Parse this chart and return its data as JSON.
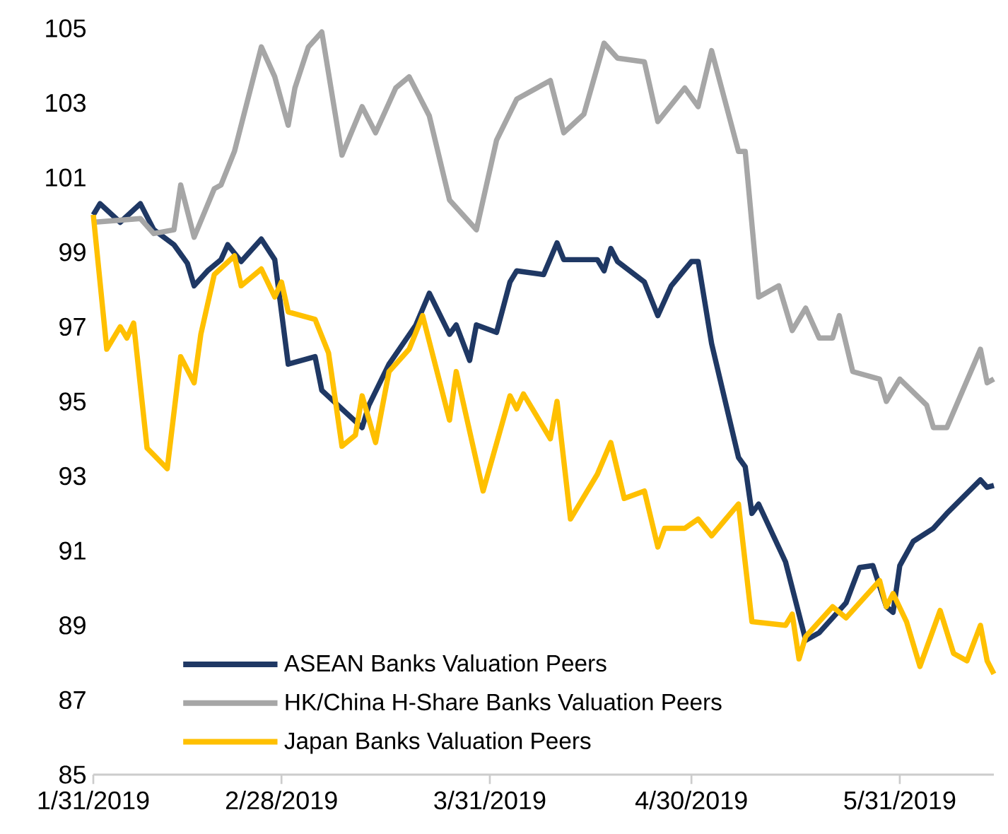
{
  "chart_data": {
    "type": "line",
    "x": [
      "2019-01-31",
      "2019-02-01",
      "2019-02-04",
      "2019-02-07",
      "2019-02-09",
      "2019-02-12",
      "2019-02-14",
      "2019-02-15",
      "2019-02-17",
      "2019-02-19",
      "2019-02-20",
      "2019-02-22",
      "2019-02-25",
      "2019-02-27",
      "2019-03-01",
      "2019-03-05",
      "2019-03-06",
      "2019-03-09",
      "2019-03-12",
      "2019-03-13",
      "2019-03-16",
      "2019-03-20",
      "2019-03-22",
      "2019-03-25",
      "2019-03-26",
      "2019-03-28",
      "2019-03-29",
      "2019-04-01",
      "2019-04-03",
      "2019-04-04",
      "2019-04-08",
      "2019-04-10",
      "2019-04-11",
      "2019-04-16",
      "2019-04-17",
      "2019-04-18",
      "2019-04-19",
      "2019-04-23",
      "2019-04-25",
      "2019-04-27",
      "2019-04-30",
      "2019-05-01",
      "2019-05-03",
      "2019-05-07",
      "2019-05-08",
      "2019-05-09",
      "2019-05-10",
      "2019-05-14",
      "2019-05-17",
      "2019-05-19",
      "2019-05-23",
      "2019-05-25",
      "2019-05-27",
      "2019-05-29",
      "2019-05-30",
      "2019-05-31",
      "2019-06-02",
      "2019-06-05",
      "2019-06-07",
      "2019-06-12",
      "2019-06-13",
      "2019-06-14"
    ],
    "series": [
      {
        "name": "ASEAN Banks Valuation Peers",
        "color": "#1f3864",
        "values": [
          100.0,
          100.3,
          99.8,
          100.3,
          99.6,
          99.2,
          98.7,
          98.1,
          98.5,
          98.8,
          99.2,
          98.75,
          99.35,
          98.8,
          96.0,
          96.2,
          95.3,
          94.8,
          94.3,
          94.9,
          96.0,
          97.05,
          97.9,
          96.8,
          97.05,
          96.1,
          97.05,
          96.85,
          98.2,
          98.5,
          98.4,
          99.25,
          98.8,
          98.8,
          98.5,
          99.1,
          98.75,
          98.2,
          97.3,
          98.1,
          98.75,
          98.75,
          96.55,
          93.5,
          93.25,
          92.0,
          92.25,
          90.7,
          88.6,
          88.8,
          89.6,
          90.55,
          90.6,
          89.5,
          89.35,
          90.6,
          91.25,
          91.6,
          92.0,
          92.9,
          92.7,
          92.75
        ]
      },
      {
        "name": "HK/China H-Share Banks Valuation Peers",
        "color": "#a6a6a6",
        "x": [
          "2019-01-31",
          "2019-02-07",
          "2019-02-09",
          "2019-02-12",
          "2019-02-13",
          "2019-02-15",
          "2019-02-18",
          "2019-02-19",
          "2019-02-21",
          "2019-02-25",
          "2019-02-27",
          "2019-03-01",
          "2019-03-02",
          "2019-03-04",
          "2019-03-06",
          "2019-03-09",
          "2019-03-12",
          "2019-03-14",
          "2019-03-17",
          "2019-03-19",
          "2019-03-22",
          "2019-03-25",
          "2019-03-29",
          "2019-04-01",
          "2019-04-04",
          "2019-04-09",
          "2019-04-11",
          "2019-04-14",
          "2019-04-17",
          "2019-04-19",
          "2019-04-23",
          "2019-04-25",
          "2019-04-29",
          "2019-05-01",
          "2019-05-03",
          "2019-05-07",
          "2019-05-08",
          "2019-05-10",
          "2019-05-13",
          "2019-05-15",
          "2019-05-17",
          "2019-05-19",
          "2019-05-21",
          "2019-05-22",
          "2019-05-24",
          "2019-05-28",
          "2019-05-29",
          "2019-05-31",
          "2019-06-04",
          "2019-06-05",
          "2019-06-07",
          "2019-06-12",
          "2019-06-13",
          "2019-06-14"
        ],
        "values": [
          99.8,
          99.9,
          99.5,
          99.6,
          100.8,
          99.4,
          100.7,
          100.8,
          101.7,
          104.5,
          103.7,
          102.4,
          103.4,
          104.5,
          104.9,
          101.6,
          102.9,
          102.2,
          103.4,
          103.7,
          102.65,
          100.4,
          99.6,
          102.0,
          103.1,
          103.6,
          102.2,
          102.7,
          104.6,
          104.2,
          104.1,
          102.5,
          103.4,
          102.9,
          104.4,
          101.7,
          101.7,
          97.8,
          98.1,
          96.9,
          97.5,
          96.7,
          96.7,
          97.3,
          95.8,
          95.6,
          95.0,
          95.6,
          94.9,
          94.3,
          94.3,
          96.4,
          95.5,
          95.6
        ]
      },
      {
        "name": "Japan Banks Valuation Peers",
        "color": "#ffc000",
        "x": [
          "2019-01-31",
          "2019-02-02",
          "2019-02-04",
          "2019-02-05",
          "2019-02-06",
          "2019-02-08",
          "2019-02-11",
          "2019-02-13",
          "2019-02-15",
          "2019-02-16",
          "2019-02-18",
          "2019-02-21",
          "2019-02-22",
          "2019-02-25",
          "2019-02-27",
          "2019-02-28",
          "2019-03-01",
          "2019-03-05",
          "2019-03-07",
          "2019-03-09",
          "2019-03-11",
          "2019-03-12",
          "2019-03-14",
          "2019-03-16",
          "2019-03-19",
          "2019-03-21",
          "2019-03-25",
          "2019-03-26",
          "2019-03-30",
          "2019-04-03",
          "2019-04-04",
          "2019-04-05",
          "2019-04-09",
          "2019-04-10",
          "2019-04-12",
          "2019-04-16",
          "2019-04-18",
          "2019-04-20",
          "2019-04-23",
          "2019-04-25",
          "2019-04-26",
          "2019-04-29",
          "2019-05-01",
          "2019-05-03",
          "2019-05-07",
          "2019-05-09",
          "2019-05-14",
          "2019-05-15",
          "2019-05-16",
          "2019-05-17",
          "2019-05-21",
          "2019-05-23",
          "2019-05-28",
          "2019-05-29",
          "2019-05-30",
          "2019-06-01",
          "2019-06-03",
          "2019-06-06",
          "2019-06-08",
          "2019-06-10",
          "2019-06-12",
          "2019-06-13",
          "2019-06-14"
        ],
        "values": [
          100.0,
          96.4,
          97.0,
          96.7,
          97.1,
          93.75,
          93.2,
          96.2,
          95.5,
          96.8,
          98.4,
          98.9,
          98.1,
          98.55,
          97.8,
          98.2,
          97.4,
          97.2,
          96.3,
          93.8,
          94.1,
          95.15,
          93.9,
          95.8,
          96.4,
          97.3,
          94.5,
          95.8,
          92.6,
          95.15,
          94.8,
          95.2,
          94.0,
          95.0,
          91.85,
          93.05,
          93.9,
          92.4,
          92.6,
          91.1,
          91.6,
          91.6,
          91.85,
          91.4,
          92.25,
          89.1,
          89.0,
          89.3,
          88.1,
          88.7,
          89.5,
          89.2,
          90.2,
          89.5,
          89.85,
          89.1,
          87.9,
          89.4,
          88.25,
          88.05,
          89.0,
          88.05,
          87.7
        ]
      }
    ],
    "xlim": [
      "2019-01-31",
      "2019-06-14"
    ],
    "xticks": [
      {
        "value": "2019-01-31",
        "label": "1/31/2019"
      },
      {
        "value": "2019-02-28",
        "label": "2/28/2019"
      },
      {
        "value": "2019-03-31",
        "label": "3/31/2019"
      },
      {
        "value": "2019-04-30",
        "label": "4/30/2019"
      },
      {
        "value": "2019-05-31",
        "label": "5/31/2019"
      }
    ],
    "ylim": [
      85,
      105
    ],
    "yticks": [
      85,
      87,
      89,
      91,
      93,
      95,
      97,
      99,
      101,
      103,
      105
    ],
    "legend": "bottom left",
    "marker": "none",
    "line_style": "solid"
  }
}
